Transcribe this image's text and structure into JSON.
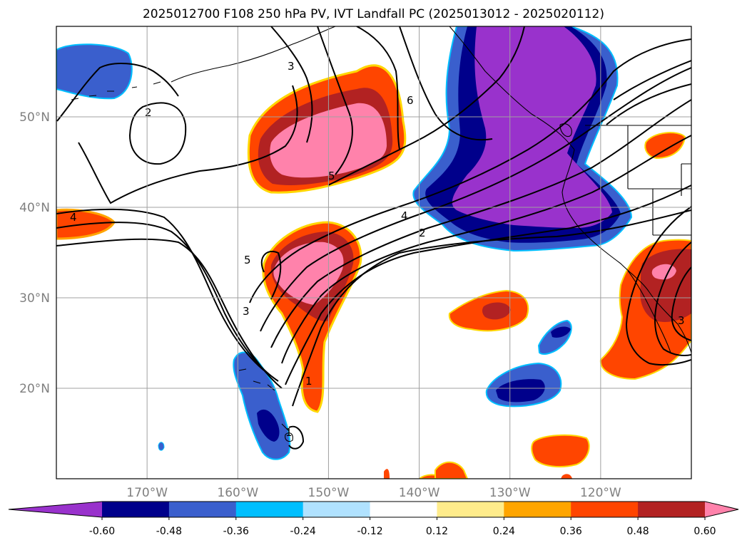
{
  "title": "2025012700 F108 250 hPa PV, IVT Landfall PC (2025013012 - 2025020112)",
  "map": {
    "lon_range": [
      -180,
      -110
    ],
    "lat_range": [
      10,
      60
    ],
    "lon_ticks": [
      {
        "lon": -170,
        "label": "170°W"
      },
      {
        "lon": -160,
        "label": "160°W"
      },
      {
        "lon": -150,
        "label": "150°W"
      },
      {
        "lon": -140,
        "label": "140°W"
      },
      {
        "lon": -130,
        "label": "130°W"
      },
      {
        "lon": -120,
        "label": "120°W"
      }
    ],
    "lat_ticks": [
      {
        "lat": 20,
        "label": "20°N"
      },
      {
        "lat": 30,
        "label": "30°N"
      },
      {
        "lat": 40,
        "label": "40°N"
      },
      {
        "lat": 50,
        "label": "50°N"
      }
    ],
    "contour_labels": [
      "2",
      "3",
      "4",
      "5",
      "6",
      "1",
      "1",
      "2",
      "3",
      "4",
      "5",
      "3"
    ],
    "fill_colors": {
      "neg_extreme": "#9932cc",
      "neg_strong": "#00008b",
      "neg_mid": "#3a5fcd",
      "pos_mid": "#ff4500",
      "pos_strong": "#b22222",
      "pos_extreme": "#ff82ab"
    }
  },
  "colorbar": {
    "levels": [
      "-0.60",
      "-0.48",
      "-0.36",
      "-0.24",
      "-0.12",
      "0.12",
      "0.24",
      "0.36",
      "0.48",
      "0.60"
    ],
    "colors": [
      "#9932cc",
      "#00008b",
      "#3a5fcd",
      "#00bfff",
      "#b0e2ff",
      "#ffffff",
      "#ffec8b",
      "#ffa500",
      "#ff4500",
      "#b22222",
      "#ff82ab"
    ]
  }
}
